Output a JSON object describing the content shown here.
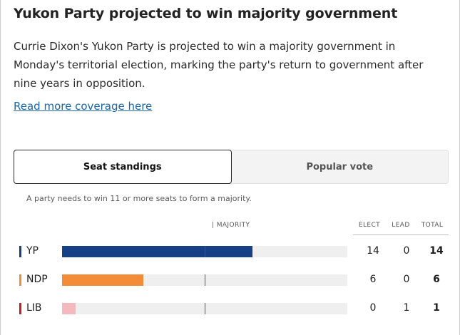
{
  "headline": "Yukon Party projected to win majority government",
  "intro": "Currie Dixon's Yukon Party is projected to win a majority government in Monday's territorial election, marking the party's return to government after nine years in opposition.",
  "link_text": "Read more coverage here",
  "tabs": [
    {
      "label": "Seat standings",
      "active": true
    },
    {
      "label": "Popular vote",
      "active": false
    }
  ],
  "majority_note": "A party needs to win 11 or more seats to form a majority.",
  "majority_marker_label": "| MAJORITY",
  "majority_seats": 11,
  "columns": {
    "elect": "ELECT",
    "lead": "LEAD",
    "total": "TOTAL"
  },
  "parties": [
    {
      "name": "YP",
      "color": "#163f85",
      "elect": "14",
      "lead": "0",
      "total": "14",
      "seats": 14
    },
    {
      "name": "NDP",
      "color": "#f28c38",
      "elect": "6",
      "lead": "0",
      "total": "6",
      "seats": 6
    },
    {
      "name": "LIB",
      "color": "#c91d2a",
      "bar_color": "#f4b9bf",
      "elect": "0",
      "lead": "1",
      "total": "1",
      "seats": 1
    }
  ],
  "scale_max_seats": 21
}
